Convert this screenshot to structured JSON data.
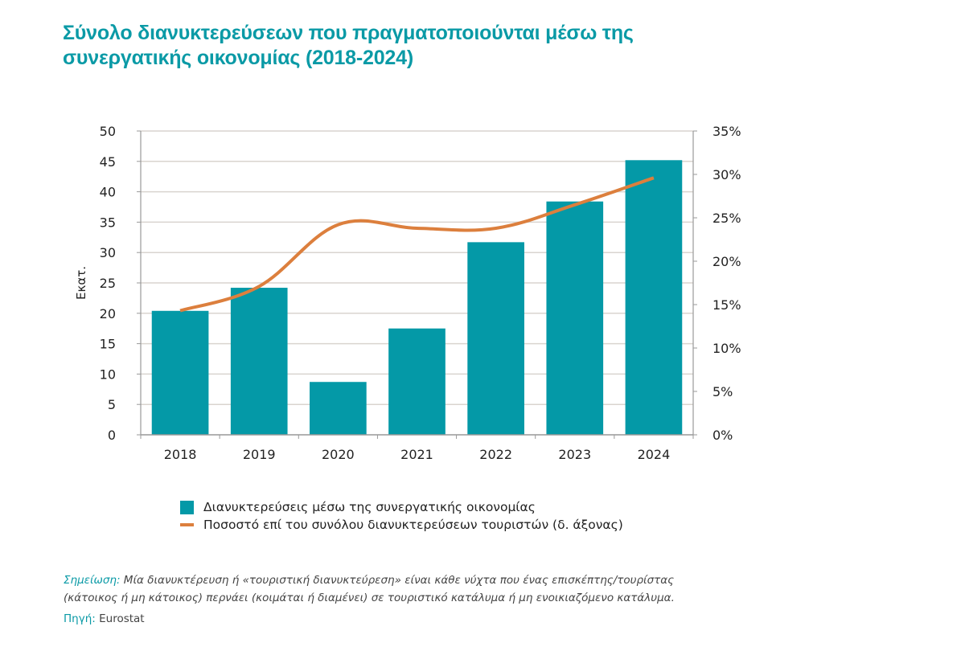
{
  "title_line1": "Σύνολο διανυκτερεύσεων που πραγματοποιούνται μέσω της",
  "title_line2": "συνεργατικής οικονομίας (2018-2024)",
  "chart_data": {
    "type": "bar",
    "title": "Σύνολο διανυκτερεύσεων που πραγματοποιούνται μέσω της συνεργατικής οικονομίας (2018-2024)",
    "categories": [
      "2018",
      "2019",
      "2020",
      "2021",
      "2022",
      "2023",
      "2024"
    ],
    "series": [
      {
        "name": "Διανυκτερεύσεις μέσω της συνεργατικής οικονομίας",
        "type": "bar",
        "axis": "left",
        "color": "#0499a7",
        "values": [
          20.4,
          24.2,
          8.7,
          17.5,
          31.7,
          38.4,
          45.2
        ]
      },
      {
        "name": "Ποσοστό επί του συνόλου διανυκτερεύσεων τουριστών (δ. άξονας)",
        "type": "line",
        "axis": "right",
        "color": "#dc7f3d",
        "values": [
          14.3,
          17.1,
          24.2,
          23.8,
          23.8,
          26.5,
          29.6
        ]
      }
    ],
    "ylabel": "Εκατ.",
    "ylim": [
      0,
      50
    ],
    "yticks": [
      "0",
      "5",
      "10",
      "15",
      "20",
      "25",
      "30",
      "35",
      "40",
      "45",
      "50"
    ],
    "y2lim": [
      0,
      35
    ],
    "y2ticks": [
      "0%",
      "5%",
      "10%",
      "15%",
      "20%",
      "25%",
      "30%",
      "35%"
    ],
    "grid": true,
    "legend_position": "bottom"
  },
  "note": {
    "label": "Σημείωση:",
    "text": " Μία διανυκτέρευση ή «τουριστική διανυκτεύρεση» είναι κάθε νύχτα που ένας επισκέπτης/τουρίστας",
    "text2": "(κάτοικος ή μη κάτοικος) περνάει (κοιμάται ή διαμένει) σε τουριστικό κατάλυμα ή μη ενοικιαζόμενο κατάλυμα."
  },
  "source": {
    "label": "Πηγή:",
    "text": " Eurostat"
  }
}
